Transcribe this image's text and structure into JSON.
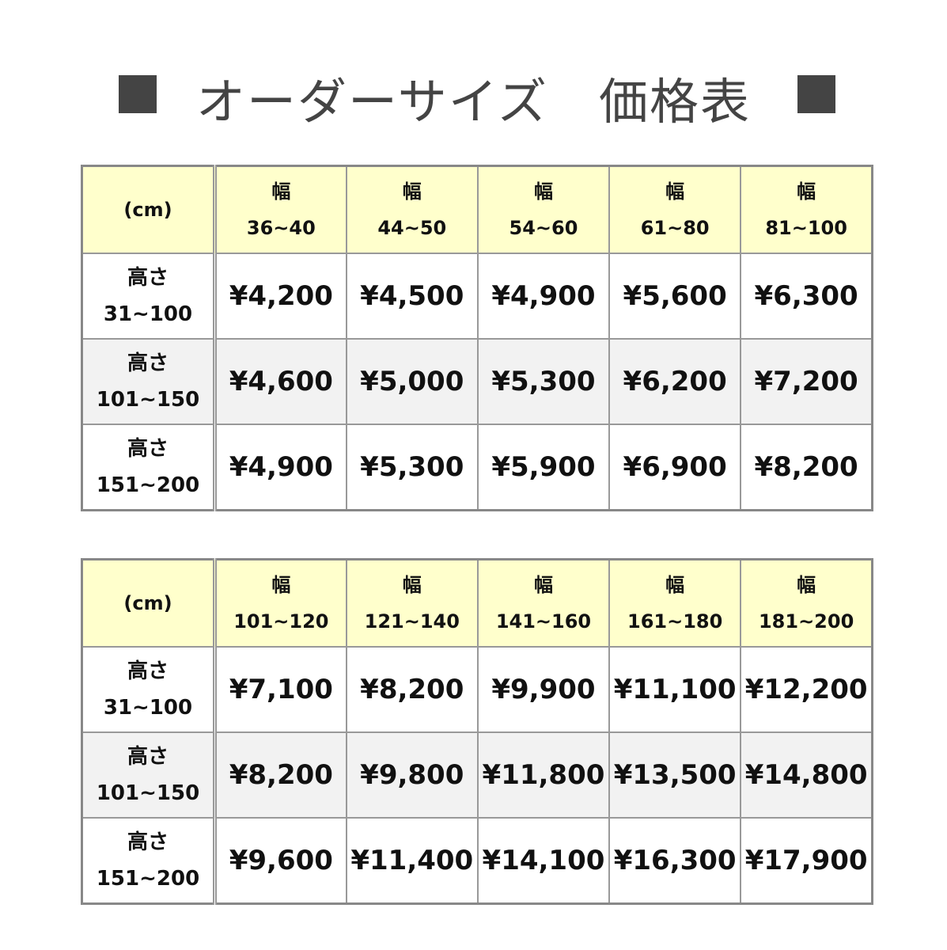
{
  "title": "オーダーサイズ　価格表",
  "colors": {
    "header_bg": "#ffffcc",
    "shaded_row_bg": "#f2f2f2",
    "title_square": "#444444"
  },
  "tables": [
    {
      "corner": "(cm)",
      "width_label": "幅",
      "widths": [
        "36~40",
        "44~50",
        "54~60",
        "61~80",
        "81~100"
      ],
      "rows": [
        {
          "label": "高さ",
          "range": "31~100",
          "prices": [
            "¥4,200",
            "¥4,500",
            "¥4,900",
            "¥5,600",
            "¥6,300"
          ]
        },
        {
          "label": "高さ",
          "range": "101~150",
          "prices": [
            "¥4,600",
            "¥5,000",
            "¥5,300",
            "¥6,200",
            "¥7,200"
          ]
        },
        {
          "label": "高さ",
          "range": "151~200",
          "prices": [
            "¥4,900",
            "¥5,300",
            "¥5,900",
            "¥6,900",
            "¥8,200"
          ]
        }
      ]
    },
    {
      "corner": "(cm)",
      "width_label": "幅",
      "widths": [
        "101~120",
        "121~140",
        "141~160",
        "161~180",
        "181~200"
      ],
      "rows": [
        {
          "label": "高さ",
          "range": "31~100",
          "prices": [
            "¥7,100",
            "¥8,200",
            "¥9,900",
            "¥11,100",
            "¥12,200"
          ]
        },
        {
          "label": "高さ",
          "range": "101~150",
          "prices": [
            "¥8,200",
            "¥9,800",
            "¥11,800",
            "¥13,500",
            "¥14,800"
          ]
        },
        {
          "label": "高さ",
          "range": "151~200",
          "prices": [
            "¥9,600",
            "¥11,400",
            "¥14,100",
            "¥16,300",
            "¥17,900"
          ]
        }
      ]
    }
  ]
}
